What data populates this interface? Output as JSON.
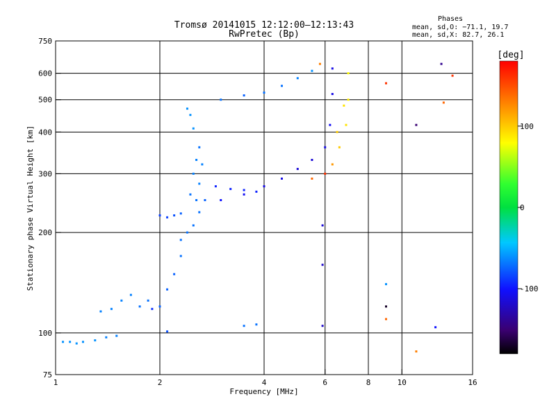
{
  "chart_data": {
    "type": "scatter",
    "title": "Tromsø 20141015 12:12:00–12:13:43",
    "subtitle": "RwPretec (Bp)",
    "xlabel": "Frequency [MHz]",
    "ylabel": "Stationary phase Virtual Height [km]",
    "x_scale": "log",
    "y_scale": "log",
    "xlim": [
      1,
      16
    ],
    "ylim": [
      75,
      750
    ],
    "x_ticks": [
      1,
      2,
      4,
      6,
      8,
      10,
      16
    ],
    "y_ticks": [
      75,
      100,
      200,
      300,
      400,
      500,
      600,
      750
    ],
    "grid_x": [
      2,
      4,
      6,
      8,
      10
    ],
    "grid_y": [
      100,
      200,
      300,
      400,
      500,
      600
    ],
    "phases_block": {
      "heading": "Phases",
      "line_o": "mean, sd,O: −71.1, 19.7",
      "line_x": "mean, sd,X:  82.7, 26.1"
    },
    "colorbar": {
      "unit": "[deg]",
      "range": [
        -180,
        180
      ],
      "ticks": [
        100,
        0,
        -100
      ]
    },
    "series": [
      {
        "points": [
          [
            1.05,
            94,
            -60
          ],
          [
            1.1,
            94,
            -60
          ],
          [
            1.15,
            93,
            -60
          ],
          [
            1.2,
            94,
            -60
          ],
          [
            1.3,
            95,
            -60
          ],
          [
            1.4,
            97,
            -65
          ],
          [
            1.5,
            98,
            -65
          ],
          [
            1.35,
            116,
            -65
          ],
          [
            1.45,
            118,
            -65
          ],
          [
            1.55,
            125,
            -65
          ],
          [
            1.65,
            130,
            -65
          ],
          [
            1.75,
            120,
            -70
          ],
          [
            1.85,
            125,
            -70
          ],
          [
            1.9,
            118,
            -90
          ],
          [
            2.0,
            225,
            -85
          ],
          [
            2.1,
            222,
            -85
          ],
          [
            2.2,
            225,
            -80
          ],
          [
            2.3,
            228,
            -75
          ],
          [
            2.45,
            260,
            -70
          ],
          [
            2.5,
            300,
            -65
          ],
          [
            2.55,
            330,
            -65
          ],
          [
            2.6,
            360,
            -70
          ],
          [
            2.65,
            320,
            -65
          ],
          [
            2.6,
            280,
            -65
          ],
          [
            2.55,
            250,
            -70
          ],
          [
            2.4,
            200,
            -70
          ],
          [
            2.3,
            170,
            -70
          ],
          [
            2.2,
            150,
            -75
          ],
          [
            2.1,
            135,
            -75
          ],
          [
            2.0,
            120,
            -75
          ],
          [
            2.5,
            410,
            -60
          ],
          [
            2.45,
            450,
            -60
          ],
          [
            2.4,
            470,
            -60
          ],
          [
            2.7,
            250,
            -75
          ],
          [
            2.6,
            230,
            -70
          ],
          [
            2.5,
            210,
            -70
          ],
          [
            2.3,
            190,
            -70
          ],
          [
            3.0,
            500,
            -70
          ],
          [
            3.5,
            515,
            -75
          ],
          [
            4.0,
            525,
            -70
          ],
          [
            4.5,
            550,
            -70
          ],
          [
            5.0,
            580,
            -65
          ],
          [
            5.5,
            610,
            -60
          ],
          [
            3.0,
            250,
            -100
          ],
          [
            3.5,
            260,
            -105
          ],
          [
            4.0,
            275,
            -110
          ],
          [
            4.5,
            290,
            -110
          ],
          [
            5.0,
            310,
            -115
          ],
          [
            5.5,
            330,
            -115
          ],
          [
            6.0,
            360,
            -110
          ],
          [
            6.2,
            420,
            -105
          ],
          [
            6.3,
            520,
            -110
          ],
          [
            6.3,
            620,
            -110
          ],
          [
            2.9,
            275,
            -95
          ],
          [
            3.2,
            270,
            -95
          ],
          [
            3.5,
            268,
            -95
          ],
          [
            3.8,
            265,
            -95
          ],
          [
            5.5,
            290,
            140
          ],
          [
            6.0,
            300,
            160
          ],
          [
            6.3,
            320,
            120
          ],
          [
            6.6,
            360,
            100
          ],
          [
            6.9,
            420,
            90
          ],
          [
            7.0,
            500,
            85
          ],
          [
            7.0,
            600,
            80
          ],
          [
            6.5,
            400,
            100
          ],
          [
            6.8,
            480,
            90
          ],
          [
            3.5,
            105,
            -70
          ],
          [
            3.8,
            106,
            -70
          ],
          [
            2.1,
            101,
            -80
          ],
          [
            5.8,
            640,
            130
          ],
          [
            9.0,
            560,
            160
          ],
          [
            11,
            420,
            -150
          ],
          [
            13,
            640,
            -140
          ],
          [
            13.2,
            490,
            140
          ],
          [
            14,
            590,
            160
          ],
          [
            12.5,
            104,
            -100
          ],
          [
            11,
            88,
            130
          ],
          [
            9,
            110,
            140
          ],
          [
            5.9,
            105,
            -120
          ],
          [
            5.9,
            210,
            -115
          ],
          [
            5.9,
            160,
            -120
          ],
          [
            9,
            140,
            -60
          ],
          [
            9,
            120,
            -170
          ]
        ]
      }
    ]
  }
}
